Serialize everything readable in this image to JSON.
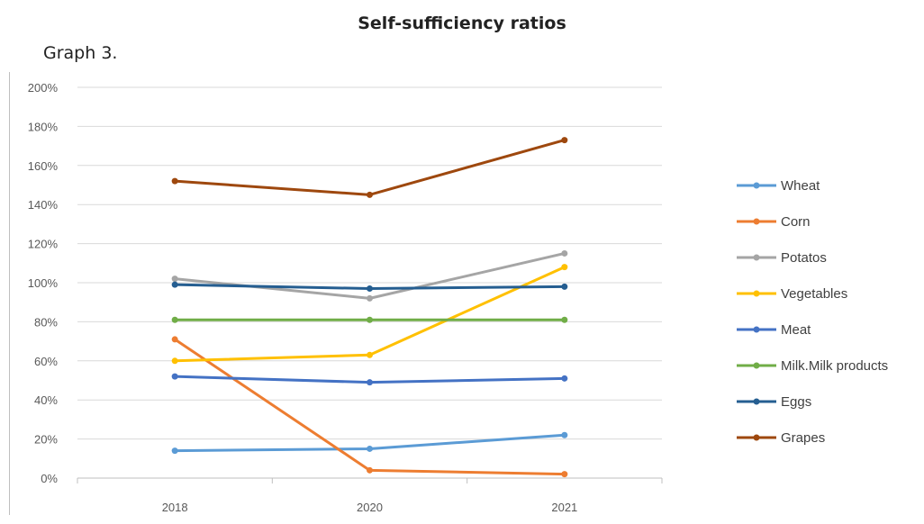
{
  "title": "Self-sufficiency ratios",
  "caption": "Graph 3.",
  "chart_data": {
    "type": "line",
    "title": "Self-sufficiency ratios",
    "xlabel": "",
    "ylabel": "",
    "categories": [
      "2018",
      "2020",
      "2021"
    ],
    "ylim": [
      0,
      200
    ],
    "yticks": [
      "0%",
      "20%",
      "40%",
      "60%",
      "80%",
      "100%",
      "120%",
      "140%",
      "160%",
      "180%",
      "200%"
    ],
    "grid": true,
    "legend_position": "right",
    "series": [
      {
        "name": "Wheat",
        "color": "#5B9BD5",
        "values": [
          14,
          15,
          22
        ]
      },
      {
        "name": "Corn",
        "color": "#ED7D31",
        "values": [
          71,
          4,
          2
        ]
      },
      {
        "name": "Potatos",
        "color": "#A5A5A5",
        "values": [
          102,
          92,
          115
        ]
      },
      {
        "name": "Vegetables",
        "color": "#FFC000",
        "values": [
          60,
          63,
          108
        ]
      },
      {
        "name": "Meat",
        "color": "#4472C4",
        "values": [
          52,
          49,
          51
        ]
      },
      {
        "name": "Milk.Milk products",
        "color": "#70AD47",
        "values": [
          81,
          81,
          81
        ]
      },
      {
        "name": "Eggs",
        "color": "#255E91",
        "values": [
          99,
          97,
          98
        ]
      },
      {
        "name": "Grapes",
        "color": "#9E480E",
        "values": [
          152,
          145,
          173
        ]
      }
    ]
  }
}
